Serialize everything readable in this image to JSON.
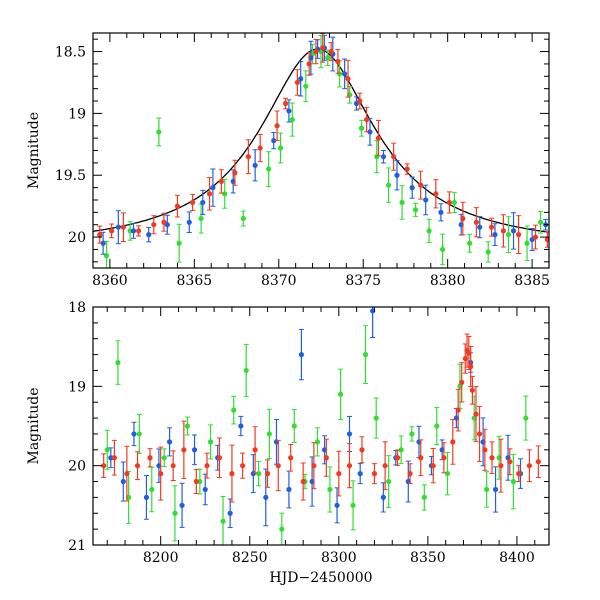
{
  "colors": {
    "green": "#33dd33",
    "blue": "#1f5fe0",
    "red": "#f03a22",
    "model": "#000000",
    "frame": "#000000"
  },
  "chart_data": [
    {
      "type": "scatter",
      "title": "",
      "xlabel": "",
      "ylabel": "Magnitude",
      "xlim": [
        8359,
        8386
      ],
      "ylim": [
        20.25,
        18.35
      ],
      "y_inverted": true,
      "grid": false,
      "xticks": [
        8360,
        8365,
        8370,
        8375,
        8380,
        8385
      ],
      "xtick_labels": [
        "8360",
        "8365",
        "8370",
        "8375",
        "8380",
        "8385"
      ],
      "yticks": [
        18.5,
        19,
        19.5,
        20
      ],
      "ytick_labels": [
        "18.5",
        "19",
        "19.5",
        "20"
      ],
      "model_curve": {
        "type": "line",
        "peak_x": 8372.3,
        "peak_mag": 18.48,
        "baseline_mag": 20.1,
        "timescale_days": 4.2
      },
      "series": [
        {
          "color": "green",
          "x": [
            8359.8,
            8361.2,
            8362.9,
            8364.1,
            8365.4,
            8366.8,
            8367.9,
            8369.4,
            8370.1,
            8370.8,
            8371.6,
            8372.0,
            8372.5,
            8372.9,
            8373.6,
            8374.2,
            8374.9,
            8375.8,
            8376.5,
            8377.3,
            8378.1,
            8378.9,
            8379.7,
            8380.4,
            8381.3,
            8382.4,
            8383.6,
            8384.7,
            8385.5
          ],
          "y": [
            20.15,
            19.95,
            19.15,
            20.05,
            19.85,
            19.65,
            19.85,
            19.45,
            19.28,
            19.05,
            18.78,
            18.52,
            18.5,
            18.55,
            18.68,
            18.85,
            19.12,
            19.35,
            19.58,
            19.72,
            19.78,
            19.95,
            20.1,
            19.72,
            20.05,
            20.12,
            19.98,
            20.05,
            19.88
          ]
        },
        {
          "color": "blue",
          "x": [
            8359.6,
            8360.5,
            8361.4,
            8362.3,
            8363.4,
            8364.7,
            8365.5,
            8366.1,
            8367.3,
            8368.6,
            8369.7,
            8370.6,
            8371.3,
            8371.9,
            8372.3,
            8372.7,
            8373.2,
            8373.9,
            8374.6,
            8375.4,
            8376.2,
            8377.0,
            8377.9,
            8378.7,
            8379.6,
            8380.8,
            8381.9,
            8382.8,
            8383.9,
            8385.0,
            8385.8
          ],
          "y": [
            20.05,
            19.92,
            19.95,
            19.98,
            19.9,
            19.88,
            19.72,
            19.6,
            19.55,
            19.42,
            19.22,
            18.98,
            18.72,
            18.55,
            18.48,
            18.47,
            18.52,
            18.68,
            18.92,
            19.15,
            19.35,
            19.5,
            19.6,
            19.7,
            19.8,
            19.9,
            19.92,
            19.98,
            19.95,
            20.02,
            19.9
          ]
        },
        {
          "color": "red",
          "x": [
            8359.4,
            8360.1,
            8360.8,
            8361.7,
            8362.6,
            8363.2,
            8364.0,
            8364.9,
            8365.9,
            8366.6,
            8367.4,
            8368.2,
            8368.9,
            8369.9,
            8370.4,
            8371.1,
            8371.8,
            8372.2,
            8372.6,
            8373.1,
            8373.5,
            8374.1,
            8374.8,
            8375.2,
            8375.9,
            8376.8,
            8377.6,
            8378.4,
            8379.3,
            8380.1,
            8380.9,
            8381.7,
            8382.6,
            8383.3,
            8384.2,
            8385.2,
            8385.9
          ],
          "y": [
            19.98,
            19.95,
            19.92,
            19.95,
            19.9,
            19.88,
            19.75,
            19.72,
            19.65,
            19.55,
            19.48,
            19.35,
            19.28,
            19.1,
            18.92,
            18.75,
            18.6,
            18.5,
            18.47,
            18.5,
            18.58,
            18.72,
            18.9,
            19.05,
            19.2,
            19.35,
            19.45,
            19.58,
            19.65,
            19.72,
            19.85,
            19.88,
            19.92,
            19.95,
            19.98,
            20.0,
            20.02
          ]
        }
      ]
    },
    {
      "type": "scatter",
      "title": "",
      "xlabel": "HJD−2450000",
      "ylabel": "Magnitude",
      "xlim": [
        8162,
        8418
      ],
      "ylim": [
        21.0,
        18.0
      ],
      "y_inverted": true,
      "grid": false,
      "xticks": [
        8200,
        8250,
        8300,
        8350,
        8400
      ],
      "xtick_labels": [
        "8200",
        "8250",
        "8300",
        "8350",
        "8400"
      ],
      "yticks": [
        18,
        19,
        20,
        21
      ],
      "ytick_labels": [
        "18",
        "19",
        "20",
        "21"
      ],
      "series": [
        {
          "color": "green",
          "x": [
            8170,
            8176,
            8182,
            8188,
            8195,
            8202,
            8208,
            8215,
            8222,
            8228,
            8235,
            8241,
            8248,
            8255,
            8261,
            8268,
            8275,
            8281,
            8288,
            8295,
            8301,
            8308,
            8315,
            8321,
            8328,
            8335,
            8341,
            8348,
            8355,
            8361,
            8368,
            8376,
            8383,
            8390,
            8398,
            8405
          ],
          "y": [
            19.8,
            18.7,
            20.4,
            19.6,
            20.3,
            19.9,
            20.6,
            19.5,
            20.2,
            19.7,
            20.7,
            19.3,
            18.8,
            20.1,
            19.6,
            20.8,
            19.5,
            20.2,
            19.7,
            20.3,
            19.1,
            20.5,
            18.6,
            19.4,
            20.2,
            19.8,
            19.6,
            20.4,
            19.5,
            20.1,
            19.0,
            19.4,
            20.3,
            19.9,
            20.2,
            19.4
          ]
        },
        {
          "color": "blue",
          "x": [
            8172,
            8179,
            8185,
            8192,
            8199,
            8205,
            8212,
            8219,
            8225,
            8232,
            8239,
            8245,
            8252,
            8259,
            8265,
            8272,
            8279,
            8285,
            8292,
            8299,
            8306,
            8312,
            8319,
            8325,
            8332,
            8339,
            8345,
            8352,
            8358,
            8366,
            8374,
            8381,
            8388,
            8395,
            8402
          ],
          "y": [
            19.9,
            20.2,
            19.6,
            20.4,
            20.0,
            19.7,
            20.5,
            19.8,
            20.3,
            19.9,
            20.6,
            19.5,
            20.1,
            20.4,
            19.7,
            20.3,
            18.6,
            20.2,
            19.8,
            20.5,
            19.6,
            20.1,
            18.05,
            20.4,
            19.9,
            20.2,
            19.7,
            20.0,
            19.8,
            19.4,
            18.7,
            19.7,
            20.3,
            19.9,
            20.1
          ]
        },
        {
          "color": "red",
          "x": [
            8168,
            8174,
            8181,
            8187,
            8194,
            8200,
            8207,
            8213,
            8220,
            8226,
            8233,
            8240,
            8246,
            8253,
            8260,
            8266,
            8273,
            8280,
            8286,
            8293,
            8300,
            8306,
            8313,
            8320,
            8326,
            8333,
            8340,
            8346,
            8353,
            8359,
            8364,
            8367,
            8369,
            8371,
            8372,
            8373,
            8374,
            8375,
            8377,
            8379,
            8382,
            8386,
            8391,
            8396,
            8401,
            8407,
            8412
          ],
          "y": [
            20.0,
            19.9,
            20.1,
            20.0,
            19.9,
            20.1,
            20.0,
            19.8,
            20.2,
            20.0,
            19.9,
            20.1,
            20.0,
            19.8,
            20.1,
            20.0,
            19.9,
            20.2,
            20.0,
            19.9,
            20.1,
            20.0,
            19.8,
            20.1,
            20.0,
            19.9,
            20.1,
            19.9,
            20.0,
            19.9,
            19.7,
            19.3,
            18.95,
            18.65,
            18.55,
            18.58,
            18.75,
            19.05,
            19.35,
            19.6,
            19.8,
            19.9,
            20.0,
            19.95,
            20.1,
            20.0,
            19.95
          ]
        }
      ]
    }
  ]
}
